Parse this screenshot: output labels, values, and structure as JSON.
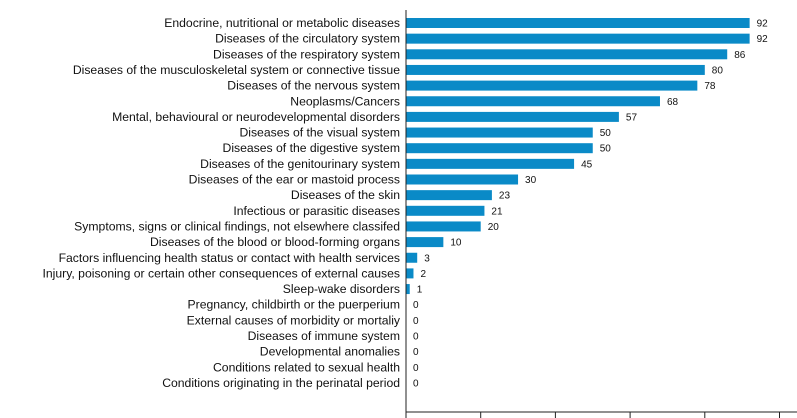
{
  "chart_data": {
    "type": "bar",
    "orientation": "horizontal",
    "title": "",
    "xlabel": "",
    "ylabel": "",
    "xlim": [
      0,
      100
    ],
    "bar_color": "#0a8ac7",
    "categories": [
      "Endocrine, nutritional or metabolic diseases",
      "Diseases of the circulatory system",
      "Diseases of the respiratory system",
      "Diseases of the musculoskeletal system or connective tissue",
      "Diseases of the nervous system",
      "Neoplasms/Cancers",
      "Mental, behavioural or neurodevelopmental disorders",
      "Diseases of the visual system",
      "Diseases of the digestive system",
      "Diseases of the genitourinary system",
      "Diseases of the ear or mastoid process",
      "Diseases of the skin",
      "Infectious or parasitic diseases",
      "Symptoms, signs or clinical findings, not elsewhere classifed",
      "Diseases of the blood or blood-forming organs",
      "Factors influencing health status or contact with health services",
      "Injury, poisoning or certain other consequences of external causes",
      "Sleep-wake disorders",
      "Pregnancy, childbirth or the puerperium",
      "External causes of morbidity or mortaliy",
      "Diseases of immune system",
      "Developmental anomalies",
      "Conditions related to sexual health",
      "Conditions originating in the perinatal period"
    ],
    "values": [
      92,
      92,
      86,
      80,
      78,
      68,
      57,
      50,
      50,
      45,
      30,
      23,
      21,
      20,
      10,
      3,
      2,
      1,
      0,
      0,
      0,
      0,
      0,
      0
    ]
  }
}
